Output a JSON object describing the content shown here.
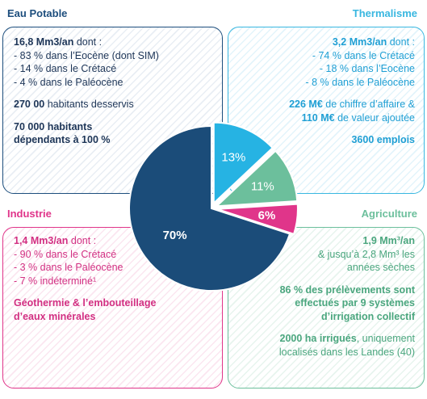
{
  "sections": {
    "eau": {
      "title": "Eau Potable",
      "color": "#1d4e7d",
      "lines": [
        {
          "b": "16,8 Mm3/an",
          "t": " dont :"
        },
        {
          "t": "- 83 % dans l’Eocène (dont SIM)"
        },
        {
          "t": "- 14 % dans le Crétacé"
        },
        {
          "t": "- 4 % dans le Paléocène"
        },
        {
          "gap": true
        },
        {
          "b": "270 00",
          "t": " habitants desservis"
        },
        {
          "gap": true
        },
        {
          "b": "70 000 habitants"
        },
        {
          "b": "dépendants à 100 %"
        }
      ]
    },
    "thermalisme": {
      "title": "Thermalisme",
      "color": "#39b7e0",
      "lines": [
        {
          "b": "3,2 Mm3/an",
          "t": " dont :"
        },
        {
          "t": "- 74 % dans le Crétacé"
        },
        {
          "t": "- 18 % dans l’Eocène"
        },
        {
          "t": "- 8 % dans le Paléocène"
        },
        {
          "gap": true
        },
        {
          "b": "226 M€",
          "t": " de chiffre d’affaire &"
        },
        {
          "b": "110 M€",
          "t": " de valeur ajoutée"
        },
        {
          "gap": true
        },
        {
          "b": "3600 emplois"
        }
      ]
    },
    "industrie": {
      "title": "Industrie",
      "color": "#e0358a",
      "lines": [
        {
          "b": "1,4 Mm3/an",
          "t": " dont :"
        },
        {
          "t": "- 90 % dans le Crétacé"
        },
        {
          "t": "- 3 % dans le Paléocène"
        },
        {
          "t": "- 7 % indéterminé¹"
        },
        {
          "gap": true
        },
        {
          "b": "Géothermie & l’embouteillage"
        },
        {
          "b": "d’eaux minérales"
        }
      ]
    },
    "agriculture": {
      "title": "Agriculture",
      "color": "#6cbf9c",
      "lines": [
        {
          "b": "1,9 Mm³/an"
        },
        {
          "t": "& jusqu’à 2,8 Mm³ les"
        },
        {
          "t": "années sèches"
        },
        {
          "gap": true
        },
        {
          "b": "86 % des prélèvements sont"
        },
        {
          "b": "effectués par 9 systèmes"
        },
        {
          "b": "d’irrigation collectif"
        },
        {
          "gap": true
        },
        {
          "b": "2000 ha irrigués",
          "t": ", uniquement"
        },
        {
          "t": "localisés dans les Landes (40)"
        }
      ]
    }
  },
  "chart_data": {
    "type": "pie",
    "start_angle_deg": -90,
    "slices": [
      {
        "key": "thermalisme",
        "label": "13%",
        "value": 13,
        "color": "#26b3e3"
      },
      {
        "key": "agriculture",
        "label": "11%",
        "value": 11,
        "color": "#6cbf9c"
      },
      {
        "key": "industrie",
        "label": "6%",
        "value": 6,
        "color": "#e0358a"
      },
      {
        "key": "eau",
        "label": "70%",
        "value": 70,
        "color": "#1b4c79"
      }
    ]
  }
}
